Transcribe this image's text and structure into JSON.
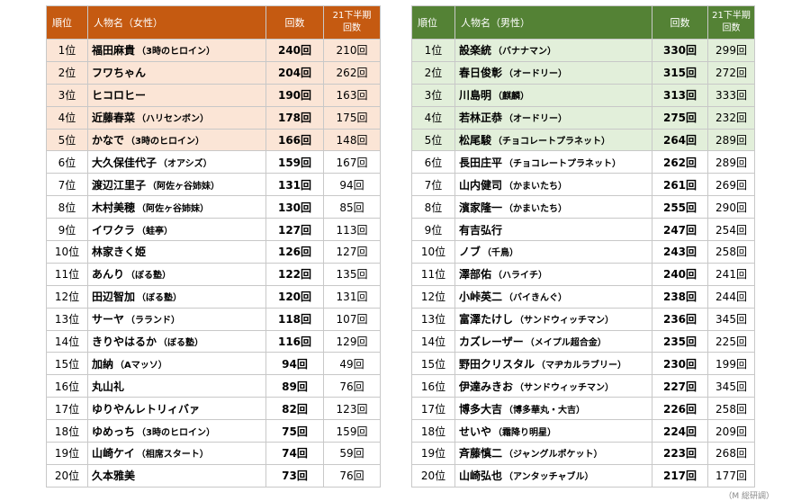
{
  "female": {
    "headers": {
      "rank": "順位",
      "name": "人物名（女性）",
      "count": "回数",
      "prev_line1": "21下半期",
      "prev_line2": "回数"
    },
    "rows": [
      {
        "rank": "1位",
        "name": "福田麻貴",
        "affil": "（3時のヒロイン）",
        "count": "240回",
        "prev": "210回"
      },
      {
        "rank": "2位",
        "name": "フワちゃん",
        "affil": "",
        "count": "204回",
        "prev": "262回"
      },
      {
        "rank": "3位",
        "name": "ヒコロヒー",
        "affil": "",
        "count": "190回",
        "prev": "163回"
      },
      {
        "rank": "4位",
        "name": "近藤春菜",
        "affil": "（ハリセンボン）",
        "count": "178回",
        "prev": "175回"
      },
      {
        "rank": "5位",
        "name": "かなで",
        "affil": "（3時のヒロイン）",
        "count": "166回",
        "prev": "148回"
      },
      {
        "rank": "6位",
        "name": "大久保佳代子",
        "affil": "（オアシズ）",
        "count": "159回",
        "prev": "167回"
      },
      {
        "rank": "7位",
        "name": "渡辺江里子",
        "affil": "（阿佐ヶ谷姉妹）",
        "count": "131回",
        "prev": "94回"
      },
      {
        "rank": "8位",
        "name": "木村美穂",
        "affil": "（阿佐ヶ谷姉妹）",
        "count": "130回",
        "prev": "85回"
      },
      {
        "rank": "9位",
        "name": "イワクラ",
        "affil": "（蛙亭）",
        "count": "127回",
        "prev": "113回"
      },
      {
        "rank": "10位",
        "name": "林家きく姫",
        "affil": "",
        "count": "126回",
        "prev": "127回"
      },
      {
        "rank": "11位",
        "name": "あんり",
        "affil": "（ぼる塾）",
        "count": "122回",
        "prev": "135回"
      },
      {
        "rank": "12位",
        "name": "田辺智加",
        "affil": "（ぼる塾）",
        "count": "120回",
        "prev": "131回"
      },
      {
        "rank": "13位",
        "name": "サーヤ",
        "affil": "（ラランド）",
        "count": "118回",
        "prev": "107回"
      },
      {
        "rank": "14位",
        "name": "きりやはるか",
        "affil": "（ぼる塾）",
        "count": "116回",
        "prev": "129回"
      },
      {
        "rank": "15位",
        "name": "加納",
        "affil": "（Aマッソ）",
        "count": "94回",
        "prev": "49回"
      },
      {
        "rank": "16位",
        "name": "丸山礼",
        "affil": "",
        "count": "89回",
        "prev": "76回"
      },
      {
        "rank": "17位",
        "name": "ゆりやんレトリィバァ",
        "affil": "",
        "count": "82回",
        "prev": "123回"
      },
      {
        "rank": "18位",
        "name": "ゆめっち",
        "affil": "（3時のヒロイン）",
        "count": "75回",
        "prev": "159回"
      },
      {
        "rank": "19位",
        "name": "山崎ケイ",
        "affil": "（相席スタート）",
        "count": "74回",
        "prev": "59回"
      },
      {
        "rank": "20位",
        "name": "久本雅美",
        "affil": "",
        "count": "73回",
        "prev": "76回"
      }
    ]
  },
  "male": {
    "headers": {
      "rank": "順位",
      "name": "人物名（男性）",
      "count": "回数",
      "prev_line1": "21下半期",
      "prev_line2": "回数"
    },
    "rows": [
      {
        "rank": "1位",
        "name": "設楽統",
        "affil": "（バナナマン）",
        "count": "330回",
        "prev": "299回"
      },
      {
        "rank": "2位",
        "name": "春日俊彰",
        "affil": "（オードリー）",
        "count": "315回",
        "prev": "272回"
      },
      {
        "rank": "3位",
        "name": "川島明",
        "affil": "（麒麟）",
        "count": "313回",
        "prev": "333回"
      },
      {
        "rank": "4位",
        "name": "若林正恭",
        "affil": "（オードリー）",
        "count": "275回",
        "prev": "232回"
      },
      {
        "rank": "5位",
        "name": "松尾駿",
        "affil": "（チョコレートプラネット）",
        "count": "264回",
        "prev": "289回"
      },
      {
        "rank": "6位",
        "name": "長田庄平",
        "affil": "（チョコレートプラネット）",
        "count": "262回",
        "prev": "289回"
      },
      {
        "rank": "7位",
        "name": "山内健司",
        "affil": "（かまいたち）",
        "count": "261回",
        "prev": "269回"
      },
      {
        "rank": "8位",
        "name": "濱家隆一",
        "affil": "（かまいたち）",
        "count": "255回",
        "prev": "290回"
      },
      {
        "rank": "9位",
        "name": "有吉弘行",
        "affil": "",
        "count": "247回",
        "prev": "254回"
      },
      {
        "rank": "10位",
        "name": "ノブ",
        "affil": "（千鳥）",
        "count": "243回",
        "prev": "258回"
      },
      {
        "rank": "11位",
        "name": "澤部佑",
        "affil": "（ハライチ）",
        "count": "240回",
        "prev": "241回"
      },
      {
        "rank": "12位",
        "name": "小峠英二",
        "affil": "（バイきんぐ）",
        "count": "238回",
        "prev": "244回"
      },
      {
        "rank": "13位",
        "name": "富澤たけし",
        "affil": "（サンドウィッチマン）",
        "count": "236回",
        "prev": "345回"
      },
      {
        "rank": "14位",
        "name": "カズレーザー",
        "affil": "（メイプル超合金）",
        "count": "235回",
        "prev": "225回"
      },
      {
        "rank": "15位",
        "name": "野田クリスタル",
        "affil": "（マヂカルラブリー）",
        "count": "230回",
        "prev": "199回"
      },
      {
        "rank": "16位",
        "name": "伊達みきお",
        "affil": "（サンドウィッチマン）",
        "count": "227回",
        "prev": "345回"
      },
      {
        "rank": "17位",
        "name": "博多大吉",
        "affil": "（博多華丸・大吉）",
        "count": "226回",
        "prev": "258回"
      },
      {
        "rank": "18位",
        "name": "せいや",
        "affil": "（霜降り明星）",
        "count": "224回",
        "prev": "209回"
      },
      {
        "rank": "19位",
        "name": "斉藤慎二",
        "affil": "（ジャングルポケット）",
        "count": "223回",
        "prev": "268回"
      },
      {
        "rank": "20位",
        "name": "山崎弘也",
        "affil": "（アンタッチャブル）",
        "count": "217回",
        "prev": "177回"
      }
    ]
  },
  "colors": {
    "female_header": "#c55a11",
    "female_top": "#fbe5d6",
    "male_header": "#548235",
    "male_top": "#e2efda"
  },
  "note": "（M 総研調）"
}
